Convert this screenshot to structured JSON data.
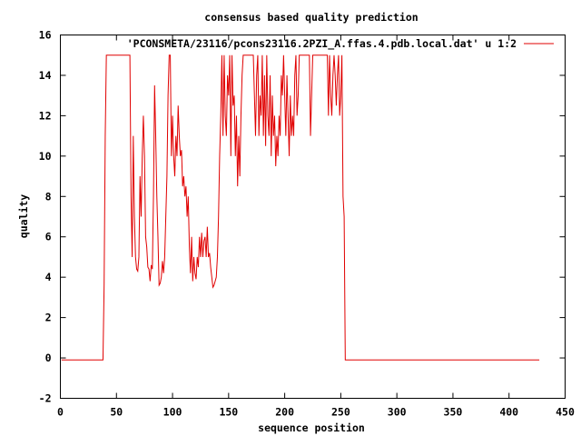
{
  "chart_data": {
    "type": "line",
    "title": "consensus based quality prediction",
    "xlabel": "sequence position",
    "ylabel": "quality",
    "xlim": [
      0,
      450
    ],
    "ylim": [
      -2,
      16
    ],
    "xticks": [
      "0",
      "50",
      "100",
      "150",
      "200",
      "250",
      "300",
      "350",
      "400",
      "450"
    ],
    "yticks": [
      "-2",
      "0",
      "2",
      "4",
      "6",
      "8",
      "10",
      "12",
      "14",
      "16"
    ],
    "grid": false,
    "legend": {
      "placement": "top-right"
    },
    "series": [
      {
        "name": "'PCONSMETA/23116/pcons23116.2PZI_A.ffas.4.pdb.local.dat' u 1:2",
        "color": "#e00000",
        "points": [
          [
            1,
            -0.1
          ],
          [
            38,
            -0.1
          ],
          [
            39,
            3.6
          ],
          [
            40,
            11
          ],
          [
            41,
            15
          ],
          [
            62,
            15
          ],
          [
            63,
            8
          ],
          [
            64,
            5
          ],
          [
            65,
            11
          ],
          [
            66,
            7
          ],
          [
            67,
            5
          ],
          [
            68,
            4.4
          ],
          [
            69,
            4.3
          ],
          [
            70,
            5
          ],
          [
            71,
            9
          ],
          [
            72,
            7
          ],
          [
            73,
            10
          ],
          [
            74,
            12
          ],
          [
            75,
            10
          ],
          [
            76,
            6
          ],
          [
            77,
            5.5
          ],
          [
            78,
            4.5
          ],
          [
            79,
            4.4
          ],
          [
            80,
            3.8
          ],
          [
            81,
            4.6
          ],
          [
            82,
            4.4
          ],
          [
            83,
            8
          ],
          [
            84,
            13.5
          ],
          [
            85,
            11
          ],
          [
            86,
            8
          ],
          [
            87,
            6
          ],
          [
            88,
            3.6
          ],
          [
            89,
            3.7
          ],
          [
            90,
            4
          ],
          [
            91,
            4.8
          ],
          [
            92,
            4.2
          ],
          [
            93,
            5
          ],
          [
            94,
            7
          ],
          [
            95,
            9
          ],
          [
            96,
            13
          ],
          [
            97,
            15
          ],
          [
            98,
            15
          ],
          [
            99,
            10
          ],
          [
            100,
            12
          ],
          [
            101,
            10
          ],
          [
            102,
            9
          ],
          [
            103,
            11
          ],
          [
            104,
            10
          ],
          [
            105,
            12.5
          ],
          [
            106,
            11
          ],
          [
            107,
            10
          ],
          [
            108,
            10.3
          ],
          [
            109,
            8.5
          ],
          [
            110,
            9
          ],
          [
            111,
            8
          ],
          [
            112,
            8.5
          ],
          [
            113,
            7
          ],
          [
            114,
            8
          ],
          [
            115,
            5.5
          ],
          [
            116,
            4.2
          ],
          [
            117,
            6
          ],
          [
            118,
            3.8
          ],
          [
            119,
            5
          ],
          [
            120,
            4.2
          ],
          [
            121,
            3.9
          ],
          [
            122,
            5
          ],
          [
            123,
            4.5
          ],
          [
            124,
            6
          ],
          [
            125,
            5
          ],
          [
            126,
            6.2
          ],
          [
            127,
            5
          ],
          [
            128,
            5.8
          ],
          [
            129,
            6
          ],
          [
            130,
            5
          ],
          [
            131,
            6.5
          ],
          [
            132,
            5
          ],
          [
            133,
            5.2
          ],
          [
            134,
            4.5
          ],
          [
            135,
            4
          ],
          [
            136,
            3.5
          ],
          [
            137,
            3.6
          ],
          [
            138,
            3.8
          ],
          [
            139,
            4
          ],
          [
            140,
            5
          ],
          [
            141,
            7
          ],
          [
            142,
            10
          ],
          [
            143,
            12
          ],
          [
            144,
            15
          ],
          [
            145,
            11
          ],
          [
            146,
            15
          ],
          [
            147,
            12
          ],
          [
            148,
            11
          ],
          [
            149,
            14
          ],
          [
            150,
            13
          ],
          [
            151,
            15
          ],
          [
            152,
            10
          ],
          [
            153,
            15
          ],
          [
            154,
            12.5
          ],
          [
            155,
            13
          ],
          [
            156,
            10
          ],
          [
            157,
            12
          ],
          [
            158,
            8.5
          ],
          [
            159,
            11
          ],
          [
            160,
            9
          ],
          [
            161,
            12
          ],
          [
            162,
            14
          ],
          [
            163,
            15
          ],
          [
            172,
            15
          ],
          [
            173,
            13
          ],
          [
            174,
            11
          ],
          [
            175,
            14
          ],
          [
            176,
            15
          ],
          [
            177,
            11
          ],
          [
            178,
            13
          ],
          [
            179,
            12
          ],
          [
            180,
            15
          ],
          [
            181,
            11
          ],
          [
            182,
            14
          ],
          [
            183,
            10.5
          ],
          [
            184,
            15
          ],
          [
            185,
            12
          ],
          [
            186,
            11
          ],
          [
            187,
            14
          ],
          [
            188,
            10
          ],
          [
            189,
            13
          ],
          [
            190,
            11
          ],
          [
            191,
            12
          ],
          [
            192,
            9.5
          ],
          [
            193,
            11
          ],
          [
            194,
            10
          ],
          [
            195,
            12
          ],
          [
            196,
            11
          ],
          [
            197,
            14
          ],
          [
            198,
            13
          ],
          [
            199,
            15
          ],
          [
            200,
            13
          ],
          [
            201,
            11
          ],
          [
            202,
            14
          ],
          [
            203,
            12
          ],
          [
            204,
            10
          ],
          [
            205,
            13
          ],
          [
            206,
            11
          ],
          [
            207,
            12
          ],
          [
            208,
            11
          ],
          [
            209,
            14
          ],
          [
            210,
            15
          ],
          [
            211,
            12
          ],
          [
            212,
            13
          ],
          [
            213,
            15
          ],
          [
            222,
            15
          ],
          [
            223,
            11
          ],
          [
            224,
            13
          ],
          [
            225,
            15
          ],
          [
            238,
            15
          ],
          [
            239,
            12
          ],
          [
            240,
            15
          ],
          [
            241,
            13
          ],
          [
            242,
            12
          ],
          [
            243,
            14
          ],
          [
            244,
            15
          ],
          [
            245,
            14
          ],
          [
            246,
            12.5
          ],
          [
            247,
            14
          ],
          [
            248,
            15
          ],
          [
            249,
            12
          ],
          [
            250,
            13
          ],
          [
            251,
            15
          ],
          [
            252,
            8
          ],
          [
            253,
            7
          ],
          [
            254,
            -0.1
          ],
          [
            427,
            -0.1
          ]
        ]
      }
    ]
  }
}
